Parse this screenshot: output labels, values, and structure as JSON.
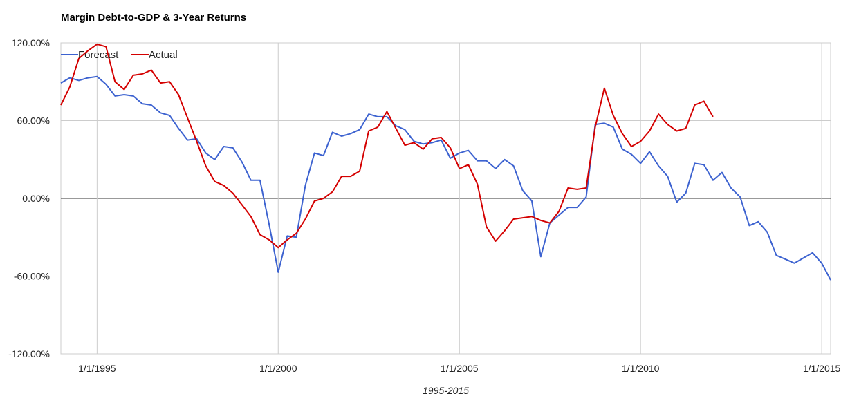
{
  "chart_data": {
    "type": "line",
    "title": "Margin Debt-to-GDP & 3-Year Returns",
    "xlabel": "1995-2015",
    "ylabel": "",
    "x_range": [
      "1994-01-01",
      "2015-04-01"
    ],
    "ylim": [
      -120,
      120
    ],
    "y_ticks": [
      {
        "value": 120,
        "label": "120.00%"
      },
      {
        "value": 60,
        "label": "60.00%"
      },
      {
        "value": 0,
        "label": "0.00%"
      },
      {
        "value": -60,
        "label": "-60.00%"
      },
      {
        "value": -120,
        "label": "-120.00%"
      }
    ],
    "x_ticks": [
      {
        "date": "1995-01-01",
        "label": "1/1/1995"
      },
      {
        "date": "2000-01-01",
        "label": "1/1/2000"
      },
      {
        "date": "2005-01-01",
        "label": "1/1/2005"
      },
      {
        "date": "2010-01-01",
        "label": "1/1/2010"
      },
      {
        "date": "2015-01-01",
        "label": "1/1/2015"
      }
    ],
    "grid": true,
    "legend_position": "top-left",
    "series": [
      {
        "name": "Forecast",
        "color": "#3c62d0",
        "points": [
          [
            "1994-01-01",
            89
          ],
          [
            "1994-04-01",
            93
          ],
          [
            "1994-07-01",
            91
          ],
          [
            "1994-10-01",
            93
          ],
          [
            "1995-01-01",
            94
          ],
          [
            "1995-04-01",
            88
          ],
          [
            "1995-07-01",
            79
          ],
          [
            "1995-10-01",
            80
          ],
          [
            "1996-01-01",
            79
          ],
          [
            "1996-04-01",
            73
          ],
          [
            "1996-07-01",
            72
          ],
          [
            "1996-10-01",
            66
          ],
          [
            "1997-01-01",
            64
          ],
          [
            "1997-04-01",
            54
          ],
          [
            "1997-07-01",
            45
          ],
          [
            "1997-10-01",
            46
          ],
          [
            "1998-01-01",
            35
          ],
          [
            "1998-04-01",
            30
          ],
          [
            "1998-07-01",
            40
          ],
          [
            "1998-10-01",
            39
          ],
          [
            "1999-01-01",
            28
          ],
          [
            "1999-04-01",
            14
          ],
          [
            "1999-07-01",
            14
          ],
          [
            "1999-10-01",
            -20
          ],
          [
            "2000-01-01",
            -57
          ],
          [
            "2000-04-01",
            -29
          ],
          [
            "2000-07-01",
            -30
          ],
          [
            "2000-10-01",
            10
          ],
          [
            "2001-01-01",
            35
          ],
          [
            "2001-04-01",
            33
          ],
          [
            "2001-07-01",
            51
          ],
          [
            "2001-10-01",
            48
          ],
          [
            "2002-01-01",
            50
          ],
          [
            "2002-04-01",
            53
          ],
          [
            "2002-07-01",
            65
          ],
          [
            "2002-10-01",
            63
          ],
          [
            "2003-01-01",
            63
          ],
          [
            "2003-04-01",
            56
          ],
          [
            "2003-07-01",
            53
          ],
          [
            "2003-10-01",
            44
          ],
          [
            "2004-01-01",
            42
          ],
          [
            "2004-04-01",
            43
          ],
          [
            "2004-07-01",
            45
          ],
          [
            "2004-10-01",
            31
          ],
          [
            "2005-01-01",
            35
          ],
          [
            "2005-04-01",
            37
          ],
          [
            "2005-07-01",
            29
          ],
          [
            "2005-10-01",
            29
          ],
          [
            "2006-01-01",
            23
          ],
          [
            "2006-04-01",
            30
          ],
          [
            "2006-07-01",
            25
          ],
          [
            "2006-10-01",
            6
          ],
          [
            "2007-01-01",
            -2
          ],
          [
            "2007-04-01",
            -45
          ],
          [
            "2007-07-01",
            -19
          ],
          [
            "2007-10-01",
            -13
          ],
          [
            "2008-01-01",
            -7
          ],
          [
            "2008-04-01",
            -7
          ],
          [
            "2008-07-01",
            1
          ],
          [
            "2008-10-01",
            57
          ],
          [
            "2009-01-01",
            58
          ],
          [
            "2009-04-01",
            55
          ],
          [
            "2009-07-01",
            38
          ],
          [
            "2009-10-01",
            34
          ],
          [
            "2010-01-01",
            27
          ],
          [
            "2010-04-01",
            36
          ],
          [
            "2010-07-01",
            25
          ],
          [
            "2010-10-01",
            17
          ],
          [
            "2011-01-01",
            -3
          ],
          [
            "2011-04-01",
            4
          ],
          [
            "2011-07-01",
            27
          ],
          [
            "2011-10-01",
            26
          ],
          [
            "2012-01-01",
            14
          ],
          [
            "2012-04-01",
            20
          ],
          [
            "2012-07-01",
            8
          ],
          [
            "2012-10-01",
            1
          ],
          [
            "2013-01-01",
            -21
          ],
          [
            "2013-04-01",
            -18
          ],
          [
            "2013-07-01",
            -26
          ],
          [
            "2013-10-01",
            -44
          ],
          [
            "2014-01-01",
            -47
          ],
          [
            "2014-04-01",
            -50
          ],
          [
            "2014-07-01",
            -46
          ],
          [
            "2014-10-01",
            -42
          ],
          [
            "2015-01-01",
            -50
          ],
          [
            "2015-04-01",
            -63
          ]
        ]
      },
      {
        "name": "Actual",
        "color": "#d40000",
        "points": [
          [
            "1994-01-01",
            72
          ],
          [
            "1994-04-01",
            86
          ],
          [
            "1994-07-01",
            108
          ],
          [
            "1994-10-01",
            114
          ],
          [
            "1995-01-01",
            119
          ],
          [
            "1995-04-01",
            117
          ],
          [
            "1995-07-01",
            90
          ],
          [
            "1995-10-01",
            84
          ],
          [
            "1996-01-01",
            95
          ],
          [
            "1996-04-01",
            96
          ],
          [
            "1996-07-01",
            99
          ],
          [
            "1996-10-01",
            89
          ],
          [
            "1997-01-01",
            90
          ],
          [
            "1997-04-01",
            80
          ],
          [
            "1997-07-01",
            62
          ],
          [
            "1997-10-01",
            44
          ],
          [
            "1998-01-01",
            25
          ],
          [
            "1998-04-01",
            13
          ],
          [
            "1998-07-01",
            10
          ],
          [
            "1998-10-01",
            4
          ],
          [
            "1999-01-01",
            -5
          ],
          [
            "1999-04-01",
            -14
          ],
          [
            "1999-07-01",
            -28
          ],
          [
            "1999-10-01",
            -32
          ],
          [
            "2000-01-01",
            -38
          ],
          [
            "2000-04-01",
            -32
          ],
          [
            "2000-07-01",
            -27
          ],
          [
            "2000-10-01",
            -16
          ],
          [
            "2001-01-01",
            -2
          ],
          [
            "2001-04-01",
            0
          ],
          [
            "2001-07-01",
            5
          ],
          [
            "2001-10-01",
            17
          ],
          [
            "2002-01-01",
            17
          ],
          [
            "2002-04-01",
            21
          ],
          [
            "2002-07-01",
            52
          ],
          [
            "2002-10-01",
            55
          ],
          [
            "2003-01-01",
            67
          ],
          [
            "2003-04-01",
            54
          ],
          [
            "2003-07-01",
            41
          ],
          [
            "2003-10-01",
            43
          ],
          [
            "2004-01-01",
            38
          ],
          [
            "2004-04-01",
            46
          ],
          [
            "2004-07-01",
            47
          ],
          [
            "2004-10-01",
            39
          ],
          [
            "2005-01-01",
            23
          ],
          [
            "2005-04-01",
            26
          ],
          [
            "2005-07-01",
            11
          ],
          [
            "2005-10-01",
            -22
          ],
          [
            "2006-01-01",
            -33
          ],
          [
            "2006-04-01",
            -25
          ],
          [
            "2006-07-01",
            -16
          ],
          [
            "2006-10-01",
            -15
          ],
          [
            "2007-01-01",
            -14
          ],
          [
            "2007-04-01",
            -17
          ],
          [
            "2007-07-01",
            -19
          ],
          [
            "2007-10-01",
            -10
          ],
          [
            "2008-01-01",
            8
          ],
          [
            "2008-04-01",
            7
          ],
          [
            "2008-07-01",
            8
          ],
          [
            "2008-10-01",
            55
          ],
          [
            "2009-01-01",
            85
          ],
          [
            "2009-04-01",
            64
          ],
          [
            "2009-07-01",
            50
          ],
          [
            "2009-10-01",
            40
          ],
          [
            "2010-01-01",
            44
          ],
          [
            "2010-04-01",
            52
          ],
          [
            "2010-07-01",
            65
          ],
          [
            "2010-10-01",
            57
          ],
          [
            "2011-01-01",
            52
          ],
          [
            "2011-04-01",
            54
          ],
          [
            "2011-07-01",
            72
          ],
          [
            "2011-10-01",
            75
          ],
          [
            "2012-01-01",
            63
          ]
        ]
      }
    ]
  }
}
